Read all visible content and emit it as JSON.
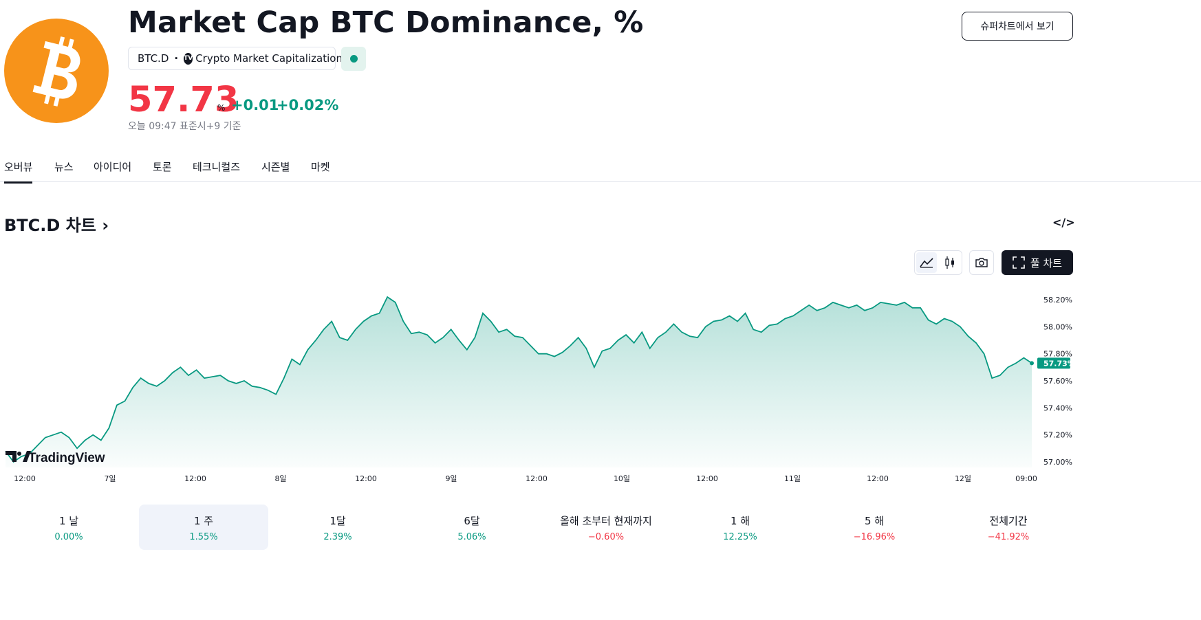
{
  "header": {
    "logo_icon": "bitcoin-icon",
    "title": "Market Cap BTC Dominance, %",
    "symbol": "BTC.D",
    "separator": "·",
    "source_logo": "TV",
    "source_name": "Crypto Market Capitalization",
    "status_icon": "market-status-dot-icon",
    "price": "57.73",
    "price_unit": "%",
    "change_abs": "+0.01",
    "change_pct": "+0.02%",
    "time_note": "오늘 09:47 표준시+9 기준",
    "supercharts_button": "슈퍼차트에서 보기"
  },
  "tabs": [
    "오버뷰",
    "뉴스",
    "아이디어",
    "토론",
    "테크니컬즈",
    "시즌별",
    "마켓"
  ],
  "active_tab": 0,
  "section": {
    "title": "BTC.D 차트",
    "chevron": "›",
    "embed_icon": "</>"
  },
  "toolbar": {
    "area_icon": "area-chart-icon",
    "candle_icon": "candlestick-icon",
    "snapshot_icon": "camera-icon",
    "fullscreen_icon": "fullscreen-icon",
    "full_chart_label": "풀 차트"
  },
  "watermark": "TradingView",
  "colors": {
    "accent": "#089981",
    "negative": "#f23645",
    "brand": "#f7931a",
    "dark": "#131722"
  },
  "chart_data": {
    "type": "area",
    "x_ticks": [
      "12:00",
      "7일",
      "12:00",
      "8일",
      "12:00",
      "9일",
      "12:00",
      "10일",
      "12:00",
      "11일",
      "12:00",
      "12일",
      "09:00"
    ],
    "y_ticks": [
      "58.20%",
      "58.00%",
      "57.80%",
      "57.60%",
      "57.40%",
      "57.20%",
      "57.00%"
    ],
    "ylim": [
      57.0,
      58.2
    ],
    "last_value_label": "57.73%",
    "last_value": 57.73,
    "series": [
      {
        "values": [
          57.08,
          57.0,
          57.04,
          57.06,
          57.12,
          57.18,
          57.2,
          57.22,
          57.18,
          57.1,
          57.16,
          57.2,
          57.16,
          57.25,
          57.42,
          57.45,
          57.55,
          57.62,
          57.58,
          57.56,
          57.6,
          57.66,
          57.7,
          57.64,
          57.68,
          57.62,
          57.63,
          57.64,
          57.6,
          57.58,
          57.6,
          57.56,
          57.55,
          57.53,
          57.5,
          57.62,
          57.76,
          57.72,
          57.83,
          57.9,
          57.98,
          58.04,
          57.92,
          57.9,
          57.98,
          58.04,
          58.08,
          58.1,
          58.22,
          58.18,
          58.04,
          57.95,
          57.96,
          57.94,
          57.88,
          57.92,
          57.98,
          57.9,
          57.83,
          57.92,
          58.1,
          58.04,
          57.96,
          57.98,
          57.93,
          57.92,
          57.86,
          57.8,
          57.8,
          57.78,
          57.81,
          57.86,
          57.92,
          57.84,
          57.7,
          57.82,
          57.84,
          57.9,
          57.94,
          57.88,
          57.96,
          57.84,
          57.92,
          57.96,
          58.02,
          57.96,
          57.93,
          57.92,
          58.0,
          58.04,
          58.05,
          58.08,
          58.04,
          58.1,
          57.98,
          57.96,
          58.01,
          58.02,
          58.06,
          58.08,
          58.12,
          58.16,
          58.12,
          58.14,
          58.18,
          58.16,
          58.14,
          58.16,
          58.12,
          58.14,
          58.18,
          58.17,
          58.16,
          58.18,
          58.14,
          58.14,
          58.05,
          58.02,
          58.06,
          58.04,
          58.0,
          57.93,
          57.88,
          57.8,
          57.62,
          57.64,
          57.7,
          57.73,
          57.77,
          57.73
        ]
      }
    ]
  },
  "periods": [
    {
      "label": "1 날",
      "value": "0.00%",
      "trend": "pos"
    },
    {
      "label": "1 주",
      "value": "1.55%",
      "trend": "pos"
    },
    {
      "label": "1달",
      "value": "2.39%",
      "trend": "pos"
    },
    {
      "label": "6달",
      "value": "5.06%",
      "trend": "pos"
    },
    {
      "label": "올해 초부터 현재까지",
      "value": "−0.60%",
      "trend": "neg"
    },
    {
      "label": "1 해",
      "value": "12.25%",
      "trend": "pos"
    },
    {
      "label": "5 해",
      "value": "−16.96%",
      "trend": "neg"
    },
    {
      "label": "전체기간",
      "value": "−41.92%",
      "trend": "neg"
    }
  ],
  "active_period": 1
}
